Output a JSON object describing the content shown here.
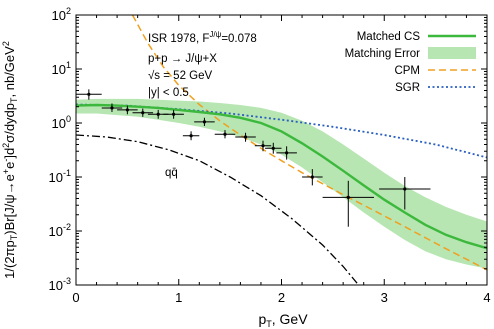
{
  "chart_data": {
    "type": "line",
    "xlabel": "p",
    "xlabel_sub": "T",
    "xlabel_unit": ", GeV",
    "ylabel_text": "1/(2πp",
    "ylabel_parts": [
      "1/(2πp",
      "T",
      ")Br[J/ψ→e",
      "+",
      "e",
      "-",
      "]d",
      "2",
      "σ/dydp",
      "T",
      ", nb/GeV",
      "2"
    ],
    "xlim": [
      0,
      4
    ],
    "ylim": [
      0.001,
      100
    ],
    "yscale": "log",
    "x_ticks": [
      "0",
      "1",
      "2",
      "3",
      "4"
    ],
    "y_ticks": [
      "10-3",
      "10-2",
      "10-1",
      "100",
      "101",
      "102"
    ],
    "y_tick_parts": [
      [
        "10",
        "-3"
      ],
      [
        "10",
        "-2"
      ],
      [
        "10",
        "-1"
      ],
      [
        "10",
        "0"
      ],
      [
        "10",
        "1"
      ],
      [
        "10",
        "2"
      ]
    ],
    "annotations": {
      "line1_a": "ISR 1978, F",
      "line1_sup": "J/ψ",
      "line1_b": "=0.078",
      "line2": "p+p → J/ψ+X",
      "line3": "√s = 52 GeV",
      "line4": "|y| < 0.5",
      "qq": "qq̄"
    },
    "legend_placement": "top-right",
    "legend": [
      {
        "name": "Matched CS",
        "color": "#3cb83c",
        "style": "solid"
      },
      {
        "name": "Matching Error",
        "color": "#b7e6b2",
        "style": "band"
      },
      {
        "name": "CPM",
        "color": "#f0a020",
        "style": "dashed"
      },
      {
        "name": "SGR",
        "color": "#2a5fc0",
        "style": "dotted"
      }
    ],
    "series": [
      {
        "name": "Matched CS",
        "color": "#3cb83c",
        "x": [
          0.0,
          0.2,
          0.4,
          0.6,
          0.8,
          1.0,
          1.2,
          1.4,
          1.6,
          1.8,
          2.0,
          2.2,
          2.4,
          2.6,
          2.8,
          3.0,
          3.2,
          3.4,
          3.6,
          3.8,
          4.0
        ],
        "y": [
          2.1,
          2.15,
          2.1,
          2.0,
          1.9,
          1.75,
          1.6,
          1.45,
          1.25,
          1.0,
          0.7,
          0.42,
          0.24,
          0.13,
          0.07,
          0.038,
          0.022,
          0.013,
          0.0085,
          0.0062,
          0.0048
        ]
      },
      {
        "name": "Matching Error",
        "color": "#b7e6b2",
        "x": [
          0.0,
          0.2,
          0.4,
          0.6,
          0.8,
          1.0,
          1.2,
          1.4,
          1.6,
          1.8,
          2.0,
          2.2,
          2.4,
          2.6,
          2.8,
          3.0,
          3.2,
          3.4,
          3.6,
          3.8,
          4.0
        ],
        "y_low": [
          1.5,
          1.5,
          1.4,
          1.3,
          1.15,
          1.0,
          0.85,
          0.7,
          0.55,
          0.4,
          0.26,
          0.15,
          0.08,
          0.042,
          0.022,
          0.012,
          0.0068,
          0.0042,
          0.003,
          0.0024,
          0.002
        ],
        "y_high": [
          2.7,
          2.8,
          2.8,
          2.8,
          2.7,
          2.6,
          2.5,
          2.35,
          2.15,
          1.9,
          1.55,
          1.1,
          0.7,
          0.4,
          0.22,
          0.12,
          0.068,
          0.042,
          0.028,
          0.02,
          0.015
        ]
      },
      {
        "name": "CPM",
        "color": "#f0a020",
        "x": [
          0.55,
          0.7,
          0.85,
          1.0,
          1.2,
          1.4,
          1.6,
          1.8,
          2.0,
          2.2,
          2.4,
          2.6,
          2.8,
          3.0,
          3.2,
          3.4,
          3.6,
          3.8,
          4.0
        ],
        "y": [
          100,
          30,
          11,
          5.0,
          2.2,
          1.1,
          0.6,
          0.34,
          0.2,
          0.12,
          0.075,
          0.047,
          0.03,
          0.019,
          0.012,
          0.0075,
          0.0047,
          0.003,
          0.0019
        ]
      },
      {
        "name": "SGR",
        "color": "#2a5fc0",
        "x": [
          0.0,
          0.5,
          1.0,
          1.5,
          2.0,
          2.5,
          3.0,
          3.5,
          4.0
        ],
        "y": [
          2.2,
          2.1,
          1.8,
          1.5,
          1.15,
          0.85,
          0.6,
          0.4,
          0.23
        ]
      },
      {
        "name": "qq̄",
        "color": "#000000",
        "x": [
          0.0,
          0.3,
          0.6,
          0.9,
          1.2,
          1.5,
          1.8,
          2.1,
          2.4,
          2.6,
          2.75
        ],
        "y": [
          0.6,
          0.55,
          0.45,
          0.32,
          0.2,
          0.1,
          0.045,
          0.017,
          0.0055,
          0.0022,
          0.001
        ]
      },
      {
        "name": "ISR 1978 data",
        "color": "#000000",
        "type": "scatter",
        "points": [
          {
            "x": 0.125,
            "y": 3.4,
            "xerr": 0.125,
            "ylo": 2.7,
            "yhi": 4.2
          },
          {
            "x": 0.35,
            "y": 1.9,
            "xerr": 0.1,
            "ylo": 1.6,
            "yhi": 2.3
          },
          {
            "x": 0.5,
            "y": 1.75,
            "xerr": 0.1,
            "ylo": 1.45,
            "yhi": 2.1
          },
          {
            "x": 0.65,
            "y": 1.55,
            "xerr": 0.1,
            "ylo": 1.3,
            "yhi": 1.85
          },
          {
            "x": 0.8,
            "y": 1.45,
            "xerr": 0.1,
            "ylo": 1.2,
            "yhi": 1.75
          },
          {
            "x": 0.95,
            "y": 1.45,
            "xerr": 0.1,
            "ylo": 1.2,
            "yhi": 1.75
          },
          {
            "x": 1.12,
            "y": 0.58,
            "xerr": 0.08,
            "ylo": 0.48,
            "yhi": 0.7
          },
          {
            "x": 1.25,
            "y": 1.05,
            "xerr": 0.1,
            "ylo": 0.88,
            "yhi": 1.25
          },
          {
            "x": 1.45,
            "y": 0.62,
            "xerr": 0.1,
            "ylo": 0.52,
            "yhi": 0.74
          },
          {
            "x": 1.65,
            "y": 0.55,
            "xerr": 0.1,
            "ylo": 0.45,
            "yhi": 0.66
          },
          {
            "x": 1.82,
            "y": 0.38,
            "xerr": 0.08,
            "ylo": 0.3,
            "yhi": 0.47
          },
          {
            "x": 1.92,
            "y": 0.34,
            "xerr": 0.08,
            "ylo": 0.27,
            "yhi": 0.43
          },
          {
            "x": 2.05,
            "y": 0.28,
            "xerr": 0.1,
            "ylo": 0.21,
            "yhi": 0.37
          },
          {
            "x": 2.3,
            "y": 0.1,
            "xerr": 0.1,
            "ylo": 0.07,
            "yhi": 0.14
          },
          {
            "x": 2.65,
            "y": 0.042,
            "xerr": 0.25,
            "ylo": 0.012,
            "yhi": 0.085
          },
          {
            "x": 3.2,
            "y": 0.06,
            "xerr": 0.25,
            "ylo": 0.025,
            "yhi": 0.1
          }
        ]
      }
    ]
  }
}
